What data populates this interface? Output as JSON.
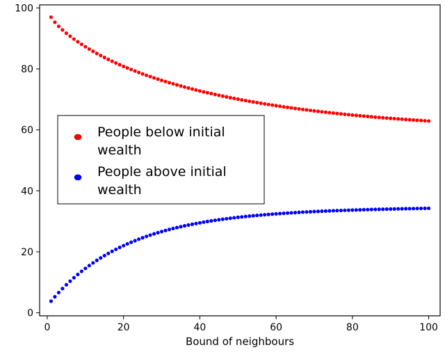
{
  "chart_data": {
    "type": "scatter",
    "xlabel": "Bound of neighbours",
    "ylabel": "",
    "xlim": [
      -2,
      103
    ],
    "ylim": [
      -1,
      101
    ],
    "xticks": [
      0,
      20,
      40,
      60,
      80,
      100
    ],
    "yticks": [
      0,
      20,
      40,
      60,
      80,
      100
    ],
    "grid": false,
    "legend_position": "center-left",
    "x": [
      1,
      2,
      3,
      4,
      5,
      6,
      7,
      8,
      9,
      10,
      11,
      12,
      13,
      14,
      15,
      16,
      17,
      18,
      19,
      20,
      21,
      22,
      23,
      24,
      25,
      26,
      27,
      28,
      29,
      30,
      31,
      32,
      33,
      34,
      35,
      36,
      37,
      38,
      39,
      40,
      41,
      42,
      43,
      44,
      45,
      46,
      47,
      48,
      49,
      50,
      51,
      52,
      53,
      54,
      55,
      56,
      57,
      58,
      59,
      60,
      61,
      62,
      63,
      64,
      65,
      66,
      67,
      68,
      69,
      70,
      71,
      72,
      73,
      74,
      75,
      76,
      77,
      78,
      79,
      80,
      81,
      82,
      83,
      84,
      85,
      86,
      87,
      88,
      89,
      90,
      91,
      92,
      93,
      94,
      95,
      96,
      97,
      98,
      99,
      100
    ],
    "series": [
      {
        "name": "People below initial wealth",
        "color": "#ff0000",
        "values": [
          96.96,
          95.3,
          93.96,
          92.78,
          91.7,
          90.71,
          89.78,
          88.9,
          88.06,
          87.26,
          86.5,
          85.77,
          85.06,
          84.39,
          83.74,
          83.11,
          82.51,
          81.93,
          81.37,
          80.82,
          80.3,
          79.79,
          79.3,
          78.82,
          78.36,
          77.91,
          77.48,
          77.05,
          76.64,
          76.24,
          75.85,
          75.48,
          75.11,
          74.75,
          74.4,
          74.06,
          73.73,
          73.4,
          73.09,
          72.78,
          72.48,
          72.19,
          71.9,
          71.62,
          71.35,
          71.08,
          70.82,
          70.57,
          70.32,
          70.08,
          69.84,
          69.61,
          69.38,
          69.16,
          68.95,
          68.74,
          68.53,
          68.33,
          68.13,
          67.94,
          67.75,
          67.56,
          67.38,
          67.21,
          67.03,
          66.87,
          66.7,
          66.54,
          66.38,
          66.23,
          66.08,
          65.93,
          65.79,
          65.64,
          65.51,
          65.37,
          65.24,
          65.11,
          64.99,
          64.86,
          64.74,
          64.63,
          64.51,
          64.4,
          64.29,
          64.18,
          64.08,
          63.97,
          63.87,
          63.78,
          63.68,
          63.59,
          63.5,
          63.41,
          63.32,
          63.23,
          63.15,
          63.07,
          62.99,
          62.91
        ]
      },
      {
        "name": "People above initial wealth",
        "color": "#0000ff",
        "values": [
          3.8,
          5.25,
          6.63,
          7.94,
          9.19,
          10.37,
          11.5,
          12.57,
          13.59,
          14.56,
          15.48,
          16.36,
          17.2,
          17.99,
          18.75,
          19.47,
          20.16,
          20.81,
          21.44,
          22.03,
          22.6,
          23.14,
          23.65,
          24.14,
          24.61,
          25.06,
          25.48,
          25.89,
          26.27,
          26.64,
          26.99,
          27.33,
          27.65,
          27.95,
          28.24,
          28.52,
          28.78,
          29.04,
          29.28,
          29.51,
          29.73,
          29.94,
          30.14,
          30.33,
          30.51,
          30.69,
          30.85,
          31.01,
          31.16,
          31.31,
          31.45,
          31.58,
          31.71,
          31.83,
          31.94,
          32.05,
          32.16,
          32.26,
          32.36,
          32.45,
          32.54,
          32.63,
          32.71,
          32.79,
          32.86,
          32.94,
          33.01,
          33.07,
          33.14,
          33.2,
          33.26,
          33.31,
          33.37,
          33.42,
          33.47,
          33.52,
          33.56,
          33.61,
          33.65,
          33.69,
          33.73,
          33.77,
          33.81,
          33.84,
          33.88,
          33.91,
          33.94,
          33.97,
          34.0,
          34.03,
          34.06,
          34.09,
          34.11,
          34.14,
          34.16,
          34.18,
          34.21,
          34.23,
          34.25,
          34.27
        ]
      }
    ],
    "legend": {
      "entries": [
        {
          "line1": "People below initial",
          "line2": "wealth",
          "color": "#ff0000"
        },
        {
          "line1": "People above initial",
          "line2": "wealth",
          "color": "#0000ff"
        }
      ]
    }
  }
}
